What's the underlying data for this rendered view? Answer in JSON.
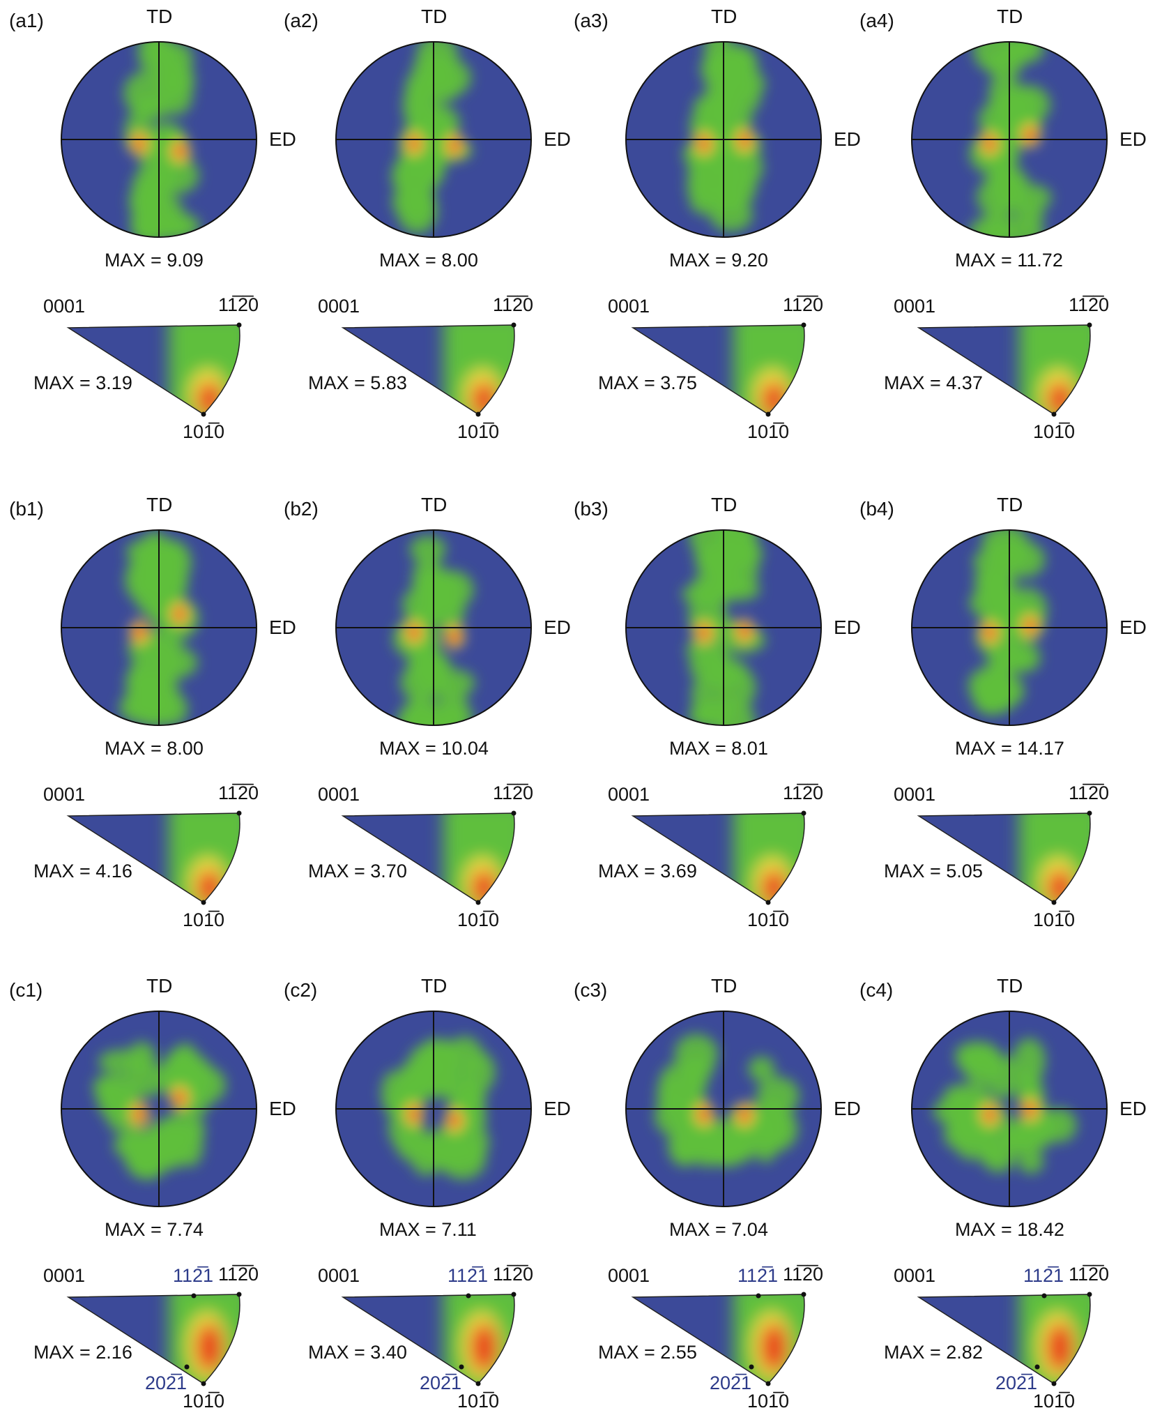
{
  "figure": {
    "axis_labels": {
      "top": "TD",
      "right": "ED"
    },
    "max_prefix": "MAX = ",
    "ipf_corners": {
      "basal": "0001",
      "prism_a": "11̅2̅0",
      "prism_m": "101̅0"
    },
    "ipf_extra": {
      "pyramidal_a": "112̅1",
      "pyramidal_m": "202̅1"
    },
    "colors": {
      "low": "#3c4a99",
      "mid": "#5fbf3c",
      "high": "#e83a1c",
      "peak": "#f5e84a",
      "annot_blue": "#2d3b8a"
    },
    "rows": [
      {
        "row_id": "a",
        "panels": [
          {
            "label": "(a1)",
            "pf_max": "9.09",
            "ipf_max": "3.19"
          },
          {
            "label": "(a2)",
            "pf_max": "8.00",
            "ipf_max": "5.83"
          },
          {
            "label": "(a3)",
            "pf_max": "9.20",
            "ipf_max": "3.75"
          },
          {
            "label": "(a4)",
            "pf_max": "11.72",
            "ipf_max": "4.37"
          }
        ]
      },
      {
        "row_id": "b",
        "panels": [
          {
            "label": "(b1)",
            "pf_max": "8.00",
            "ipf_max": "4.16"
          },
          {
            "label": "(b2)",
            "pf_max": "10.04",
            "ipf_max": "3.70"
          },
          {
            "label": "(b3)",
            "pf_max": "8.01",
            "ipf_max": "3.69"
          },
          {
            "label": "(b4)",
            "pf_max": "14.17",
            "ipf_max": "5.05"
          }
        ]
      },
      {
        "row_id": "c",
        "panels": [
          {
            "label": "(c1)",
            "pf_max": "7.74",
            "ipf_max": "2.16"
          },
          {
            "label": "(c2)",
            "pf_max": "7.11",
            "ipf_max": "3.40"
          },
          {
            "label": "(c3)",
            "pf_max": "7.04",
            "ipf_max": "2.55"
          },
          {
            "label": "(c4)",
            "pf_max": "18.42",
            "ipf_max": "2.82"
          }
        ]
      }
    ]
  }
}
